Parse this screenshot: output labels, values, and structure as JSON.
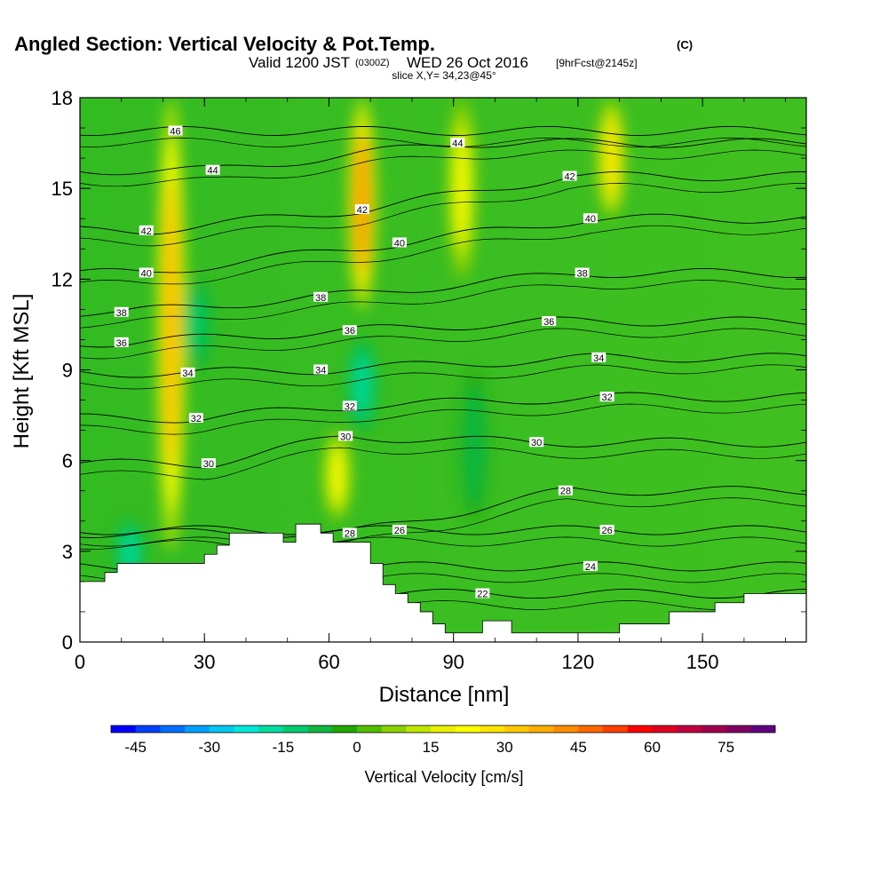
{
  "title": {
    "main": "Angled Section: Vertical Velocity & Pot.Temp.",
    "units_tag": "(C)",
    "valid_prefix": "Valid 1200 JST",
    "valid_utc": "(0300Z)",
    "valid_date": "WED 26 Oct 2016",
    "forecast": "[9hrFcst@2145z]",
    "slice": "slice X,Y= 34,23@45°"
  },
  "chart_data": {
    "type": "heatmap",
    "xlabel": "Distance [nm]",
    "ylabel": "Height [Kft MSL]",
    "xlim": [
      0,
      175
    ],
    "ylim": [
      0,
      18
    ],
    "x_ticks": [
      0,
      30,
      60,
      90,
      120,
      150
    ],
    "y_ticks": [
      0,
      3,
      6,
      9,
      12,
      15,
      18
    ],
    "colorbar": {
      "label": "Vertical Velocity [cm/s]",
      "tick_values": [
        -45,
        -30,
        -15,
        0,
        15,
        30,
        45,
        60,
        75
      ],
      "min": -50,
      "max": 85,
      "step": 5,
      "colors": [
        "#0000ff",
        "#0040ff",
        "#0070ff",
        "#00a0ff",
        "#00c8f0",
        "#00e8d8",
        "#00dca0",
        "#00cc70",
        "#10b840",
        "#20a800",
        "#50be00",
        "#88d200",
        "#c0e600",
        "#e8f000",
        "#ffff00",
        "#ffe400",
        "#ffc800",
        "#ffae00",
        "#ff8c00",
        "#ff6800",
        "#ff4000",
        "#ff0000",
        "#e00020",
        "#c00040",
        "#a00050",
        "#800060",
        "#600080"
      ]
    },
    "updraft_bands": [
      {
        "x_center": 22,
        "y_range": [
          3,
          18
        ],
        "peak_cm_s": 35
      },
      {
        "x_center": 68,
        "y_range": [
          11,
          18
        ],
        "peak_cm_s": 40
      },
      {
        "x_center": 62,
        "y_range": [
          4,
          7
        ],
        "peak_cm_s": 20
      },
      {
        "x_center": 92,
        "y_range": [
          12,
          18
        ],
        "peak_cm_s": 20
      },
      {
        "x_center": 128,
        "y_range": [
          14,
          18
        ],
        "peak_cm_s": 25
      }
    ],
    "downdraft_bands": [
      {
        "x_center": 28,
        "y_range": [
          9,
          12
        ],
        "peak_cm_s": -15
      },
      {
        "x_center": 68,
        "y_range": [
          7,
          10
        ],
        "peak_cm_s": -20
      },
      {
        "x_center": 12,
        "y_range": [
          2,
          4
        ],
        "peak_cm_s": -20
      },
      {
        "x_center": 95,
        "y_range": [
          4,
          9
        ],
        "peak_cm_s": -10
      }
    ],
    "terrain_top_kft": [
      [
        0,
        2.0
      ],
      [
        6,
        2.0
      ],
      [
        6,
        2.3
      ],
      [
        9,
        2.3
      ],
      [
        9,
        2.6
      ],
      [
        30,
        2.6
      ],
      [
        30,
        2.9
      ],
      [
        33,
        2.9
      ],
      [
        33,
        3.2
      ],
      [
        36,
        3.2
      ],
      [
        36,
        3.6
      ],
      [
        49,
        3.6
      ],
      [
        49,
        3.3
      ],
      [
        52,
        3.3
      ],
      [
        52,
        3.9
      ],
      [
        58,
        3.9
      ],
      [
        58,
        3.6
      ],
      [
        61,
        3.6
      ],
      [
        61,
        3.3
      ],
      [
        70,
        3.3
      ],
      [
        70,
        2.6
      ],
      [
        73,
        2.6
      ],
      [
        73,
        1.9
      ],
      [
        76,
        1.9
      ],
      [
        76,
        1.6
      ],
      [
        79,
        1.6
      ],
      [
        79,
        1.3
      ],
      [
        82,
        1.3
      ],
      [
        82,
        1.0
      ],
      [
        85,
        1.0
      ],
      [
        85,
        0.6
      ],
      [
        88,
        0.6
      ],
      [
        88,
        0.3
      ],
      [
        97,
        0.3
      ],
      [
        97,
        0.7
      ],
      [
        104,
        0.7
      ],
      [
        104,
        0.3
      ],
      [
        130,
        0.3
      ],
      [
        130,
        0.6
      ],
      [
        142,
        0.6
      ],
      [
        142,
        1.0
      ],
      [
        153,
        1.0
      ],
      [
        153,
        1.3
      ],
      [
        160,
        1.3
      ],
      [
        160,
        1.6
      ],
      [
        175,
        1.6
      ]
    ],
    "isotherm_labels": [
      {
        "text": "46",
        "x": 23,
        "y": 16.9
      },
      {
        "text": "44",
        "x": 32,
        "y": 15.6
      },
      {
        "text": "44",
        "x": 91,
        "y": 16.5
      },
      {
        "text": "42",
        "x": 16,
        "y": 13.6
      },
      {
        "text": "42",
        "x": 68,
        "y": 14.3
      },
      {
        "text": "42",
        "x": 118,
        "y": 15.4
      },
      {
        "text": "40",
        "x": 16,
        "y": 12.2
      },
      {
        "text": "40",
        "x": 77,
        "y": 13.2
      },
      {
        "text": "40",
        "x": 123,
        "y": 14.0
      },
      {
        "text": "38",
        "x": 10,
        "y": 10.9
      },
      {
        "text": "38",
        "x": 58,
        "y": 11.4
      },
      {
        "text": "38",
        "x": 121,
        "y": 12.2
      },
      {
        "text": "36",
        "x": 10,
        "y": 9.9
      },
      {
        "text": "36",
        "x": 65,
        "y": 10.3
      },
      {
        "text": "36",
        "x": 113,
        "y": 10.6
      },
      {
        "text": "34",
        "x": 26,
        "y": 8.9
      },
      {
        "text": "34",
        "x": 58,
        "y": 9.0
      },
      {
        "text": "34",
        "x": 125,
        "y": 9.4
      },
      {
        "text": "32",
        "x": 28,
        "y": 7.4
      },
      {
        "text": "32",
        "x": 65,
        "y": 7.8
      },
      {
        "text": "32",
        "x": 127,
        "y": 8.1
      },
      {
        "text": "30",
        "x": 31,
        "y": 5.9
      },
      {
        "text": "30",
        "x": 64,
        "y": 6.8
      },
      {
        "text": "30",
        "x": 110,
        "y": 6.6
      },
      {
        "text": "28",
        "x": 65,
        "y": 3.6
      },
      {
        "text": "28",
        "x": 117,
        "y": 5.0
      },
      {
        "text": "26",
        "x": 77,
        "y": 3.7
      },
      {
        "text": "26",
        "x": 127,
        "y": 3.7
      },
      {
        "text": "24",
        "x": 123,
        "y": 2.5
      },
      {
        "text": "22",
        "x": 97,
        "y": 1.6
      }
    ]
  }
}
